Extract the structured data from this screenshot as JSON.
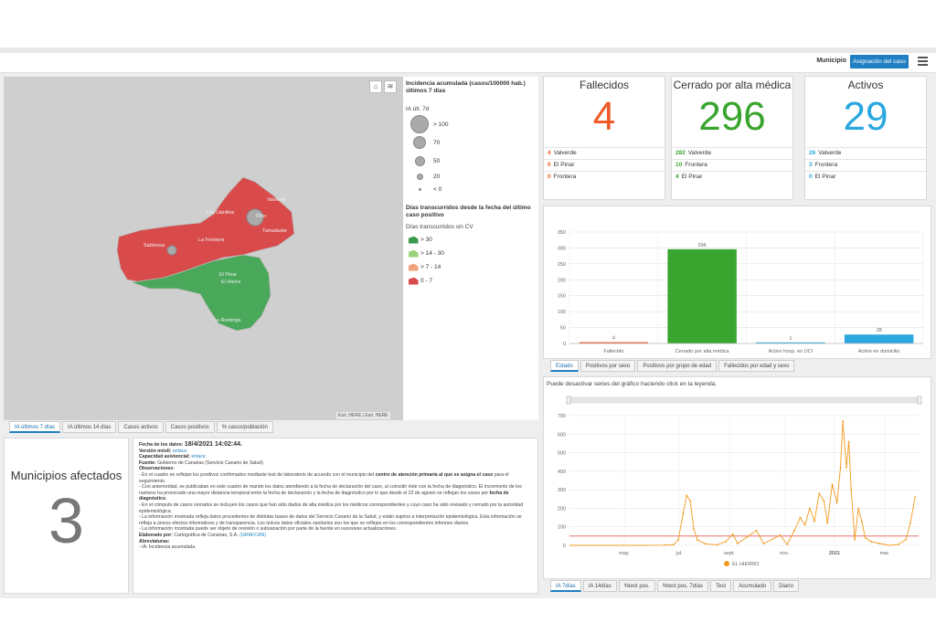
{
  "header": {
    "municipio_label": "Municipio",
    "active_button": "Asignación del caso"
  },
  "map": {
    "places": [
      "Valverde",
      "Los Llanillos",
      "Tiñor",
      "Tamaduste",
      "La Frontera",
      "Sabinosa",
      "El Pinar",
      "El Hierro",
      "La Restinga"
    ],
    "attribution1": "Esri, HERE",
    "attribution2": "Esri, HERE",
    "colors": {
      "red": "#d94a4a",
      "green": "#4aa85a"
    }
  },
  "legend": {
    "title1": "Incidencia acumulada (casos/100000 hab.) últimos 7 días",
    "sub1": "IA últ. 7d",
    "circles": [
      "> 100",
      "70",
      "50",
      "20",
      "< 0"
    ],
    "title2": "Días transcurridos desde la fecha del último caso positivo",
    "sub2": "Días transcurridos sin CV",
    "classes": [
      {
        "label": "> 30",
        "color": "#3a9a4e"
      },
      {
        "label": "> 14 - 30",
        "color": "#9ad27a"
      },
      {
        "label": "> 7 - 14",
        "color": "#f2a27a"
      },
      {
        "label": "0 - 7",
        "color": "#d94a4a"
      }
    ]
  },
  "map_tabs": [
    "IA últimos 7 días",
    "IA últimos 14 días",
    "Casos activos",
    "Casos positivos",
    "% casos/población"
  ],
  "municipios": {
    "title": "Municipios afectados",
    "value": "3"
  },
  "info": {
    "fecha_label": "Fecha de los datos:",
    "fecha_value": "18/4/2021 14:02:44.",
    "movil_label": "Versión móvil:",
    "movil_value": "enlace.",
    "cap_label": "Capacidad asistencial:",
    "cap_value": "enlace.",
    "fuente_label": "Fuente:",
    "fuente_value": "Gobierno de Canarias (Servicio Canario de Salud)",
    "obs_label": "Observaciones:",
    "p1a": "- En el cuadro se reflejan los positivos confirmados mediante test de laboratorio de acuerdo con el municipio del ",
    "p1b": "centro de atención primaria al que se asigna el caso",
    "p1c": " para el seguimiento.",
    "p2a": "- Con anterioridad, se publicaban en este cuadro de mando los datos atendiendo a la fecha de declaración del caso, al coincidir éste con la fecha de diagnóstico. El incremento de los rastreos ha provocado una mayor distancia temporal entre la fecha de declaración y la fecha de diagnóstico por lo que desde el 22 de agosto se reflejan los casos por ",
    "p2b": "fecha de diagnóstico",
    "p3": "- En el cómputo de casos cerrados se incluyen los casos que han sido dados de alta médica por los médicos correspondientes y cuyo caso ha sido revisado y cerrado por la autoridad epidemiológica.",
    "p4": "- La información mostrada refleja datos procedentes de distintas bases de datos del Servicio Canario de la Salud, y están sujetos a interpretación epidemiológica. Esta información se refleja a únicos efectos informativos y de transparencia. Los únicos datos oficiales sanitarios son los que se reflejan en los correspondientes informes diarios.",
    "p5": "- La información mostrada puede ser objeto de revisión o subsanación por parte de la fuente en sucesivas actualizaciones.",
    "elab_label": "Elaborado por:",
    "elab_value": "Cartográfica de Canarias, S.A. ",
    "elab_link": "(GRAFCAN)",
    "abrev_label": "Abreviaturas:",
    "abrev_value": "- IA: Incidencia acumulada"
  },
  "stats": [
    {
      "title": "Fallecidos",
      "value": "4",
      "color": "#f05a28",
      "rows": [
        {
          "n": "4",
          "name": "Valverde"
        },
        {
          "n": "0",
          "name": "El Pinar"
        },
        {
          "n": "0",
          "name": "Frontera"
        }
      ]
    },
    {
      "title": "Cerrado por alta médica",
      "value": "296",
      "color": "#3aa52e",
      "rows": [
        {
          "n": "282",
          "name": "Valverde"
        },
        {
          "n": "10",
          "name": "Frontera"
        },
        {
          "n": "4",
          "name": "El Pinar"
        }
      ]
    },
    {
      "title": "Activos",
      "value": "29",
      "color": "#29a8e0",
      "rows": [
        {
          "n": "26",
          "name": "Valverde"
        },
        {
          "n": "3",
          "name": "Frontera"
        },
        {
          "n": "0",
          "name": "El Pinar"
        }
      ]
    }
  ],
  "bar_tabs": [
    "Estado",
    "Positivos por sexo",
    "Positivos por grupo de edad",
    "Fallecidos por edad y sexo"
  ],
  "line_note": "Puede desactivar series del gráfico haciendo click en la leyenda.",
  "line_tabs": [
    "IA 7días",
    "IA 14días",
    "%test pos.",
    "%test pos. 7días",
    "Test",
    "Acumulado",
    "Diario"
  ],
  "chart_data": [
    {
      "type": "bar",
      "categories": [
        "Fallecido",
        "Cerrado por alta médica",
        "Activo hosp. en UCI",
        "Activo en domicilio"
      ],
      "values": [
        4,
        296,
        1,
        28
      ],
      "colors": [
        "#f05a28",
        "#3aa52e",
        "#29a8e0",
        "#29a8e0"
      ],
      "ylim": [
        0,
        350
      ],
      "yticks": [
        0,
        50,
        100,
        150,
        200,
        250,
        300,
        350
      ],
      "grid": true
    },
    {
      "type": "line",
      "series": [
        {
          "name": "EL HIERRO",
          "color": "#f29a1d"
        }
      ],
      "xticks": [
        "may.",
        "jul.",
        "sept.",
        "nov.",
        "2021",
        "mar."
      ],
      "ylim": [
        0,
        700
      ],
      "yticks": [
        0,
        100,
        200,
        300,
        400,
        500,
        600,
        700
      ],
      "threshold": 50,
      "threshold_color": "#e15a5a",
      "points": [
        [
          0,
          0
        ],
        [
          60,
          0
        ],
        [
          80,
          1
        ],
        [
          88,
          4
        ],
        [
          92,
          30
        ],
        [
          96,
          170
        ],
        [
          99,
          270
        ],
        [
          102,
          240
        ],
        [
          105,
          90
        ],
        [
          108,
          30
        ],
        [
          115,
          8
        ],
        [
          125,
          3
        ],
        [
          132,
          20
        ],
        [
          138,
          60
        ],
        [
          142,
          10
        ],
        [
          150,
          45
        ],
        [
          158,
          80
        ],
        [
          164,
          10
        ],
        [
          172,
          35
        ],
        [
          178,
          55
        ],
        [
          184,
          5
        ],
        [
          190,
          80
        ],
        [
          195,
          150
        ],
        [
          199,
          110
        ],
        [
          203,
          200
        ],
        [
          207,
          130
        ],
        [
          211,
          280
        ],
        [
          215,
          240
        ],
        [
          218,
          120
        ],
        [
          222,
          330
        ],
        [
          226,
          230
        ],
        [
          229,
          420
        ],
        [
          231,
          670
        ],
        [
          234,
          420
        ],
        [
          236,
          560
        ],
        [
          238,
          300
        ],
        [
          241,
          30
        ],
        [
          244,
          200
        ],
        [
          247,
          130
        ],
        [
          250,
          40
        ],
        [
          255,
          20
        ],
        [
          262,
          10
        ],
        [
          270,
          0
        ],
        [
          278,
          5
        ],
        [
          284,
          30
        ],
        [
          288,
          120
        ],
        [
          292,
          260
        ]
      ]
    }
  ]
}
